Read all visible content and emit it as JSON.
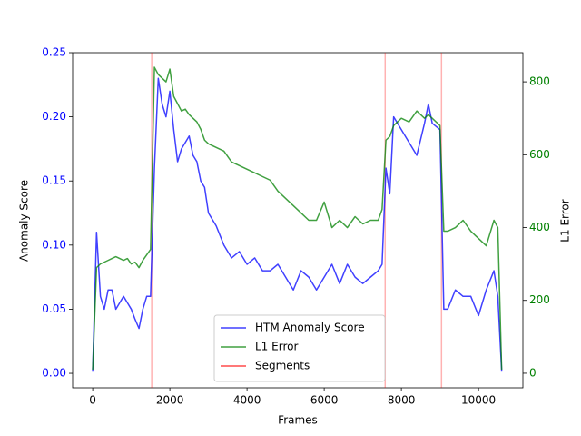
{
  "chart_data": {
    "type": "line",
    "xlabel": "Frames",
    "ylabel": "Anomaly Score",
    "y2label": "L1 Error",
    "x": [
      0,
      100,
      200,
      300,
      400,
      500,
      600,
      700,
      800,
      900,
      1000,
      1100,
      1200,
      1300,
      1400,
      1500,
      1600,
      1700,
      1800,
      1900,
      2000,
      2100,
      2200,
      2300,
      2400,
      2500,
      2600,
      2700,
      2800,
      2900,
      3000,
      3200,
      3400,
      3600,
      3800,
      4000,
      4200,
      4400,
      4600,
      4800,
      5000,
      5200,
      5400,
      5600,
      5800,
      6000,
      6200,
      6400,
      6600,
      6800,
      7000,
      7200,
      7400,
      7500,
      7600,
      7700,
      7800,
      8000,
      8200,
      8400,
      8600,
      8700,
      8800,
      9000,
      9100,
      9200,
      9400,
      9600,
      9800,
      10000,
      10200,
      10400,
      10500,
      10600
    ],
    "series": [
      {
        "name": "HTM Anomaly Score",
        "color": "blue",
        "axis": "y",
        "values": [
          0.002,
          0.11,
          0.06,
          0.05,
          0.065,
          0.065,
          0.05,
          0.055,
          0.06,
          0.055,
          0.05,
          0.042,
          0.035,
          0.05,
          0.06,
          0.06,
          0.16,
          0.23,
          0.21,
          0.2,
          0.22,
          0.19,
          0.165,
          0.175,
          0.18,
          0.185,
          0.17,
          0.165,
          0.15,
          0.145,
          0.125,
          0.115,
          0.1,
          0.09,
          0.095,
          0.085,
          0.09,
          0.08,
          0.08,
          0.085,
          0.075,
          0.065,
          0.08,
          0.075,
          0.065,
          0.075,
          0.085,
          0.07,
          0.085,
          0.075,
          0.07,
          0.075,
          0.08,
          0.085,
          0.16,
          0.14,
          0.2,
          0.19,
          0.18,
          0.17,
          0.195,
          0.21,
          0.195,
          0.19,
          0.05,
          0.05,
          0.065,
          0.06,
          0.06,
          0.045,
          0.065,
          0.08,
          0.06,
          0.002
        ]
      },
      {
        "name": "L1 Error",
        "color": "green",
        "axis": "y2",
        "values": [
          10,
          290,
          300,
          305,
          310,
          315,
          320,
          315,
          310,
          315,
          300,
          305,
          290,
          310,
          325,
          340,
          840,
          820,
          810,
          800,
          835,
          760,
          740,
          720,
          725,
          710,
          700,
          690,
          670,
          640,
          630,
          620,
          610,
          580,
          570,
          560,
          550,
          540,
          530,
          500,
          480,
          460,
          440,
          420,
          420,
          470,
          400,
          420,
          400,
          430,
          410,
          420,
          420,
          450,
          640,
          650,
          680,
          700,
          690,
          720,
          700,
          710,
          700,
          680,
          390,
          390,
          400,
          420,
          390,
          370,
          350,
          420,
          400,
          10
        ]
      }
    ],
    "segments": {
      "name": "Segments",
      "color": "red",
      "x": [
        1530,
        7580,
        9040
      ]
    },
    "xlim": [
      -520,
      11150
    ],
    "xticks": [
      0,
      2000,
      4000,
      6000,
      8000,
      10000
    ],
    "ylim": [
      -0.0113,
      0.25
    ],
    "yticks": [
      {
        "value": 0,
        "label": "0.00"
      },
      0.05,
      {
        "value": 0.1,
        "label": "0.10"
      },
      0.15,
      {
        "value": 0.2,
        "label": "0.20"
      },
      0.25
    ],
    "y2lim": [
      -40,
      880
    ],
    "y2ticks": [
      0,
      200,
      400,
      600,
      800
    ],
    "legend": "lower center"
  }
}
